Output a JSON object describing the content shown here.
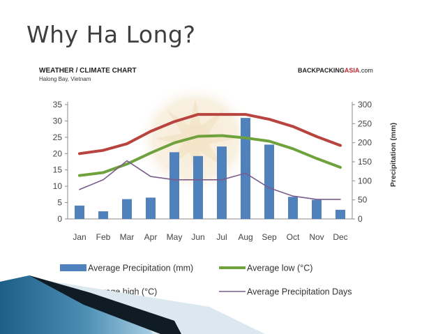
{
  "slide": {
    "title": "Why Ha Long?"
  },
  "chart_data": {
    "type": "bar",
    "title": "WEATHER / CLIMATE CHART",
    "subtitle": "Halong Bay, Vietnam",
    "brand_main": "BACKPACKING",
    "brand_accent": "ASIA",
    "brand_suffix": ".com",
    "categories": [
      "Jan",
      "Feb",
      "Mar",
      "Apr",
      "May",
      "Jun",
      "Jul",
      "Aug",
      "Sep",
      "Oct",
      "Nov",
      "Dec"
    ],
    "y_left": {
      "min": 0,
      "max": 35,
      "ticks": [
        0,
        5,
        10,
        15,
        20,
        25,
        30,
        35
      ]
    },
    "y_right": {
      "label": "Precipitation (mm)",
      "min": 0,
      "max": 300,
      "ticks": [
        0,
        50,
        100,
        150,
        200,
        250,
        300
      ]
    },
    "series": [
      {
        "name": "Average Precipitation (mm)",
        "kind": "bar",
        "axis": "right",
        "color": "#4f81bd",
        "values": [
          35,
          20,
          52,
          56,
          175,
          165,
          190,
          265,
          195,
          58,
          50,
          24
        ]
      },
      {
        "name": "Average low (°C)",
        "kind": "line",
        "axis": "left",
        "color": "#6fa23c",
        "values": [
          13.3,
          14.2,
          16.8,
          20.2,
          23.3,
          25.3,
          25.5,
          24.8,
          23.8,
          21.5,
          18.5,
          15.8
        ]
      },
      {
        "name": "Average high (°C)",
        "kind": "line",
        "axis": "left",
        "color": "#b8433f",
        "values": [
          20,
          21,
          23,
          26.8,
          29.8,
          32,
          32,
          32,
          30.5,
          28.3,
          25.2,
          22.5
        ]
      },
      {
        "name": "Average Precipitation Days",
        "kind": "line",
        "axis": "left",
        "color": "#7a5c8c",
        "values": [
          9,
          12,
          17.8,
          13,
          12,
          12,
          12,
          14,
          9.5,
          7,
          6,
          6
        ]
      }
    ],
    "legend_position": "bottom",
    "grid": false
  }
}
